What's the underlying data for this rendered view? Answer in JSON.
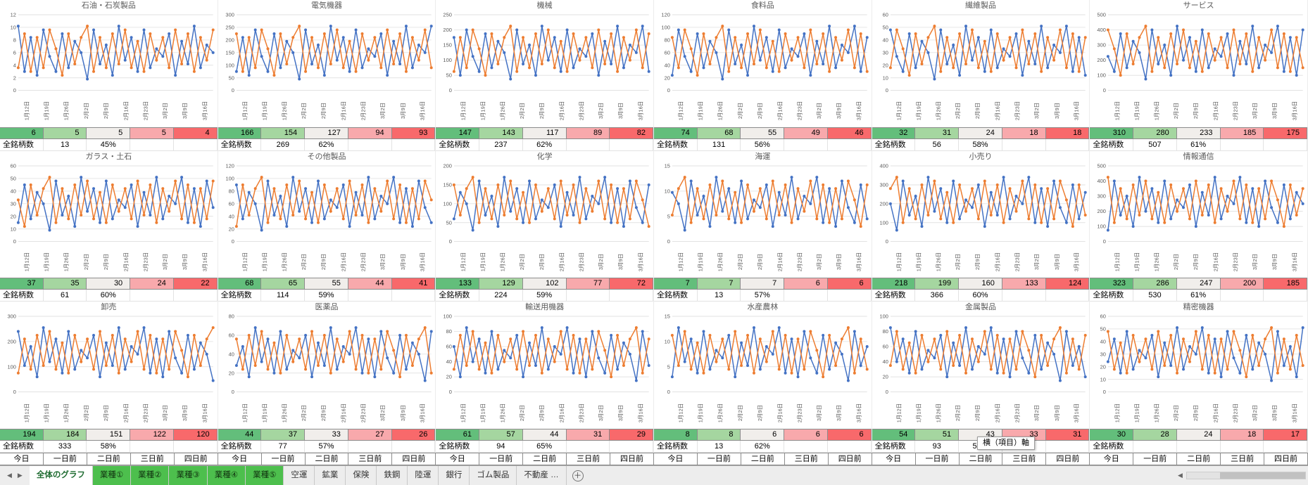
{
  "meta_label": "全銘柄数",
  "day_headers": [
    "今日",
    "一日前",
    "二日前",
    "三日前",
    "四日前"
  ],
  "x_labels": [
    "1月12日",
    "1月19日",
    "1月26日",
    "2月2日",
    "2月9日",
    "2月16日",
    "2月23日",
    "3月2日",
    "3月9日",
    "3月16日"
  ],
  "scale_colors": [
    "#63BE7B",
    "#A5D6A0",
    "#F1EEEB",
    "#F8A9AC",
    "#F8696B"
  ],
  "series_colors": {
    "blue": "#4472C4",
    "orange": "#ED7D31"
  },
  "waveforms": {
    "blue": [
      0.85,
      0.25,
      0.7,
      0.2,
      0.8,
      0.45,
      0.25,
      0.75,
      0.3,
      0.65,
      0.5,
      0.15,
      0.8,
      0.35,
      0.6,
      0.2,
      0.85,
      0.4,
      0.7,
      0.25,
      0.8,
      0.3,
      0.55,
      0.45,
      0.75,
      0.2,
      0.65,
      0.35,
      0.85,
      0.3,
      0.6,
      0.5
    ],
    "orange": [
      0.3,
      0.75,
      0.25,
      0.7,
      0.3,
      0.8,
      0.55,
      0.2,
      0.75,
      0.35,
      0.7,
      0.85,
      0.25,
      0.7,
      0.3,
      0.75,
      0.35,
      0.8,
      0.3,
      0.65,
      0.25,
      0.75,
      0.4,
      0.7,
      0.3,
      0.8,
      0.35,
      0.75,
      0.25,
      0.7,
      0.4,
      0.8
    ]
  },
  "panels": [
    {
      "title": "石油・石炭製品",
      "yticks": [
        0,
        2,
        4,
        6,
        8,
        10,
        12
      ],
      "values": [
        6,
        5,
        5,
        5,
        4
      ],
      "count": "13",
      "pct": "45%"
    },
    {
      "title": "電気機器",
      "yticks": [
        0,
        50,
        100,
        150,
        200,
        250,
        300
      ],
      "values": [
        166,
        154,
        127,
        94,
        93
      ],
      "count": "269",
      "pct": "62%"
    },
    {
      "title": "機械",
      "yticks": [
        0,
        50,
        100,
        150,
        200,
        250
      ],
      "values": [
        147,
        143,
        117,
        89,
        82
      ],
      "count": "237",
      "pct": "62%"
    },
    {
      "title": "食料品",
      "yticks": [
        0,
        20,
        40,
        60,
        80,
        100,
        120
      ],
      "values": [
        74,
        68,
        55,
        49,
        46
      ],
      "count": "131",
      "pct": "56%"
    },
    {
      "title": "繊維製品",
      "yticks": [
        0,
        10,
        20,
        30,
        40,
        50,
        60
      ],
      "values": [
        32,
        31,
        24,
        18,
        18
      ],
      "count": "56",
      "pct": "58%"
    },
    {
      "title": "サービス",
      "yticks": [
        0,
        100,
        200,
        300,
        400,
        500
      ],
      "values": [
        310,
        280,
        233,
        185,
        175
      ],
      "count": "507",
      "pct": "61%"
    },
    {
      "title": "ガラス・土石",
      "yticks": [
        0,
        10,
        20,
        30,
        40,
        50,
        60
      ],
      "values": [
        37,
        35,
        30,
        24,
        22
      ],
      "count": "61",
      "pct": "60%"
    },
    {
      "title": "その他製品",
      "yticks": [
        0,
        20,
        40,
        60,
        80,
        100,
        120
      ],
      "values": [
        68,
        65,
        55,
        44,
        41
      ],
      "count": "114",
      "pct": "59%"
    },
    {
      "title": "化学",
      "yticks": [
        0,
        50,
        100,
        150,
        200
      ],
      "values": [
        133,
        129,
        102,
        77,
        72
      ],
      "count": "224",
      "pct": "59%"
    },
    {
      "title": "海運",
      "yticks": [
        0,
        5,
        10,
        15
      ],
      "values": [
        7,
        7,
        7,
        6,
        6
      ],
      "count": "13",
      "pct": "57%"
    },
    {
      "title": "小売り",
      "yticks": [
        0,
        100,
        200,
        300,
        400
      ],
      "values": [
        218,
        199,
        160,
        133,
        124
      ],
      "count": "366",
      "pct": "60%"
    },
    {
      "title": "情報通信",
      "yticks": [
        0,
        100,
        200,
        300,
        400,
        500
      ],
      "values": [
        323,
        286,
        247,
        200,
        185
      ],
      "count": "530",
      "pct": "61%"
    },
    {
      "title": "卸売",
      "yticks": [
        0,
        100,
        200,
        300
      ],
      "values": [
        194,
        184,
        151,
        122,
        120
      ],
      "count": "333",
      "pct": "58%"
    },
    {
      "title": "医薬品",
      "yticks": [
        0,
        20,
        40,
        60,
        80
      ],
      "values": [
        44,
        37,
        33,
        27,
        26
      ],
      "count": "77",
      "pct": "57%"
    },
    {
      "title": "輸送用機器",
      "yticks": [
        0,
        20,
        40,
        60,
        80,
        100
      ],
      "values": [
        61,
        57,
        44,
        31,
        29
      ],
      "count": "94",
      "pct": "65%"
    },
    {
      "title": "水産農林",
      "yticks": [
        0,
        5,
        10,
        15
      ],
      "values": [
        8,
        8,
        6,
        6,
        6
      ],
      "count": "13",
      "pct": "62%"
    },
    {
      "title": "金属製品",
      "yticks": [
        0,
        20,
        40,
        60,
        80,
        100
      ],
      "values": [
        54,
        51,
        43,
        33,
        31
      ],
      "count": "93",
      "pct": "58%"
    },
    {
      "title": "精密機器",
      "yticks": [
        0,
        10,
        20,
        30,
        40,
        50,
        60
      ],
      "values": [
        30,
        28,
        24,
        18,
        17
      ],
      "count": "",
      "pct": ""
    }
  ],
  "tooltip": {
    "text": "横（項目）軸"
  },
  "icons": {
    "nav_left": "◀",
    "nav_right": "▶",
    "add_sheet": "＋",
    "scroll_left": "◀"
  },
  "tabbar": {
    "tabs": [
      {
        "label": "全体のグラフ",
        "type": "active"
      },
      {
        "label": "業種①",
        "type": "green"
      },
      {
        "label": "業種②",
        "type": "green"
      },
      {
        "label": "業種③",
        "type": "green"
      },
      {
        "label": "業種④",
        "type": "green"
      },
      {
        "label": "業種⑤",
        "type": "green"
      },
      {
        "label": "空運",
        "type": "plain"
      },
      {
        "label": "鉱業",
        "type": "plain"
      },
      {
        "label": "保険",
        "type": "plain"
      },
      {
        "label": "鉄鋼",
        "type": "plain"
      },
      {
        "label": "陸運",
        "type": "plain"
      },
      {
        "label": "銀行",
        "type": "plain"
      },
      {
        "label": "ゴム製品",
        "type": "plain"
      },
      {
        "label": "不動産 …",
        "type": "plain"
      }
    ]
  }
}
